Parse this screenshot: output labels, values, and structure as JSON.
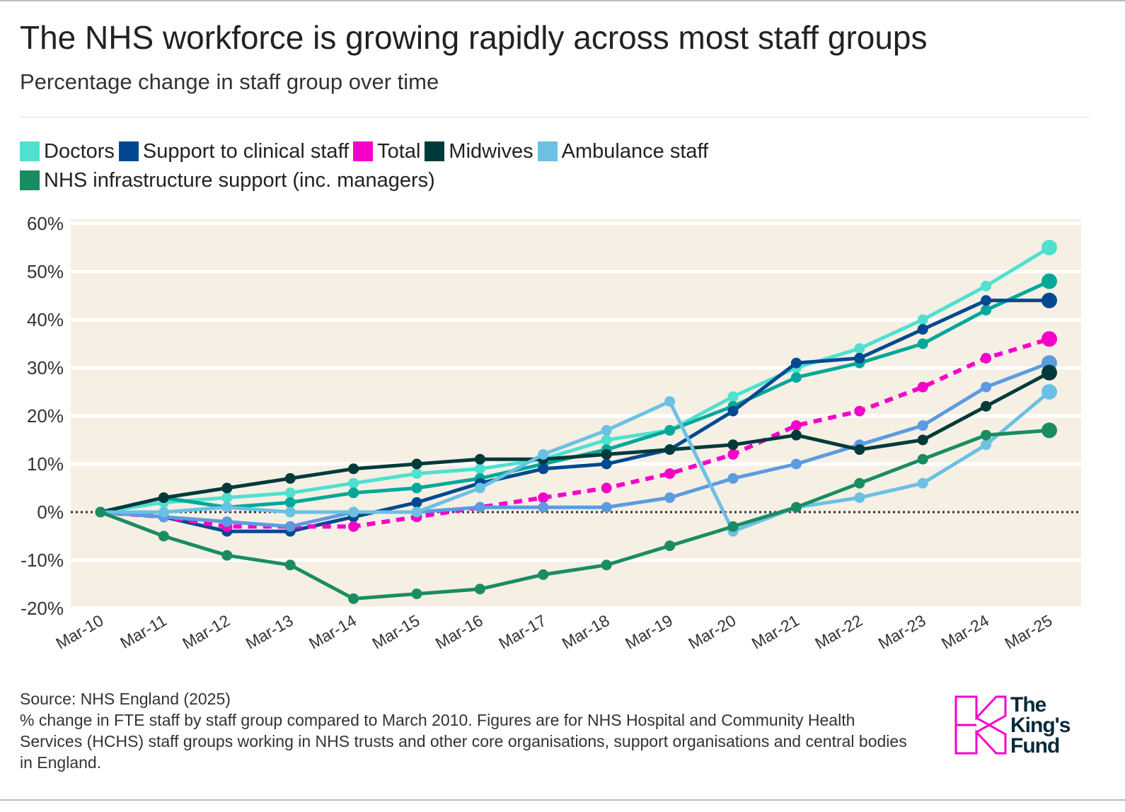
{
  "title": "The NHS workforce is growing rapidly across most staff groups",
  "subtitle": "Percentage change in staff group over time",
  "legend": [
    {
      "label": "Doctors",
      "color": "#4fe0d0"
    },
    {
      "label": "Support to clinical staff",
      "color": "#004990"
    },
    {
      "label": "Total",
      "color": "#f500c8"
    },
    {
      "label": "Midwives",
      "color": "#003a3a"
    },
    {
      "label": "Ambulance staff",
      "color": "#6ac1e3"
    },
    {
      "label": "NHS infrastructure support (inc. managers)",
      "color": "#1a8c62"
    }
  ],
  "footer": {
    "source": "Source: NHS England (2025)",
    "note": "% change in FTE staff by staff group compared to March 2010. Figures are for NHS Hospital and Community Health Services (HCHS) staff groups working in NHS trusts and other core organisations, support organisations and central bodies in England."
  },
  "logo": {
    "text": [
      "The",
      "King's",
      "Fund"
    ],
    "color": "#f500c8"
  },
  "chart_data": {
    "type": "line",
    "title": "The NHS workforce is growing rapidly across most staff groups",
    "subtitle": "Percentage change in staff group over time",
    "xlabel": "",
    "ylabel": "",
    "categories": [
      "Mar-10",
      "Mar-11",
      "Mar-12",
      "Mar-13",
      "Mar-14",
      "Mar-15",
      "Mar-16",
      "Mar-17",
      "Mar-18",
      "Mar-19",
      "Mar-20",
      "Mar-21",
      "Mar-22",
      "Mar-23",
      "Mar-24",
      "Mar-25"
    ],
    "ylim": [
      -20,
      60
    ],
    "yticks": [
      60,
      50,
      40,
      30,
      20,
      10,
      0,
      -10,
      -20
    ],
    "ytick_labels": [
      "60%",
      "50%",
      "40%",
      "30%",
      "20%",
      "10%",
      "0%",
      "-10%",
      "-20%"
    ],
    "grid": true,
    "legend_position": "top",
    "background": "#f5efe4",
    "zero_line": "dotted",
    "series": [
      {
        "name": "Doctors",
        "color": "#4fe0d0",
        "values": [
          0,
          2,
          3,
          4,
          6,
          8,
          9,
          11,
          15,
          17,
          24,
          30,
          34,
          40,
          47,
          55
        ]
      },
      {
        "color": "#00a89a",
        "values": [
          0,
          3,
          1,
          2,
          4,
          5,
          7,
          10,
          13,
          17,
          22,
          28,
          31,
          35,
          42,
          48
        ]
      },
      {
        "name": "Support to clinical staff",
        "color": "#004990",
        "values": [
          0,
          -1,
          -4,
          -4,
          -1,
          2,
          6,
          9,
          10,
          13,
          21,
          31,
          32,
          38,
          44,
          44
        ]
      },
      {
        "name": "Total",
        "color": "#f500c8",
        "dashed": true,
        "values": [
          0,
          -1,
          -3,
          -3,
          -3,
          -1,
          1,
          3,
          5,
          8,
          12,
          18,
          21,
          26,
          32,
          36
        ]
      },
      {
        "color": "#5b9be0",
        "values": [
          0,
          -1,
          -2,
          -3,
          0,
          0,
          1,
          1,
          1,
          3,
          7,
          10,
          14,
          18,
          26,
          31
        ]
      },
      {
        "name": "Midwives",
        "color": "#003a3a",
        "values": [
          0,
          3,
          5,
          7,
          9,
          10,
          11,
          11,
          12,
          13,
          14,
          16,
          13,
          15,
          22,
          29
        ]
      },
      {
        "name": "Ambulance staff",
        "color": "#6ac1e3",
        "values": [
          0,
          0,
          1,
          0,
          0,
          0,
          5,
          12,
          17,
          23,
          -4,
          1,
          3,
          6,
          14,
          25
        ]
      },
      {
        "name": "NHS infrastructure support (inc. managers)",
        "color": "#1a8c62",
        "values": [
          0,
          -5,
          -9,
          -11,
          -18,
          -17,
          -16,
          -13,
          -11,
          -7,
          -3,
          1,
          6,
          11,
          16,
          17
        ]
      }
    ]
  }
}
